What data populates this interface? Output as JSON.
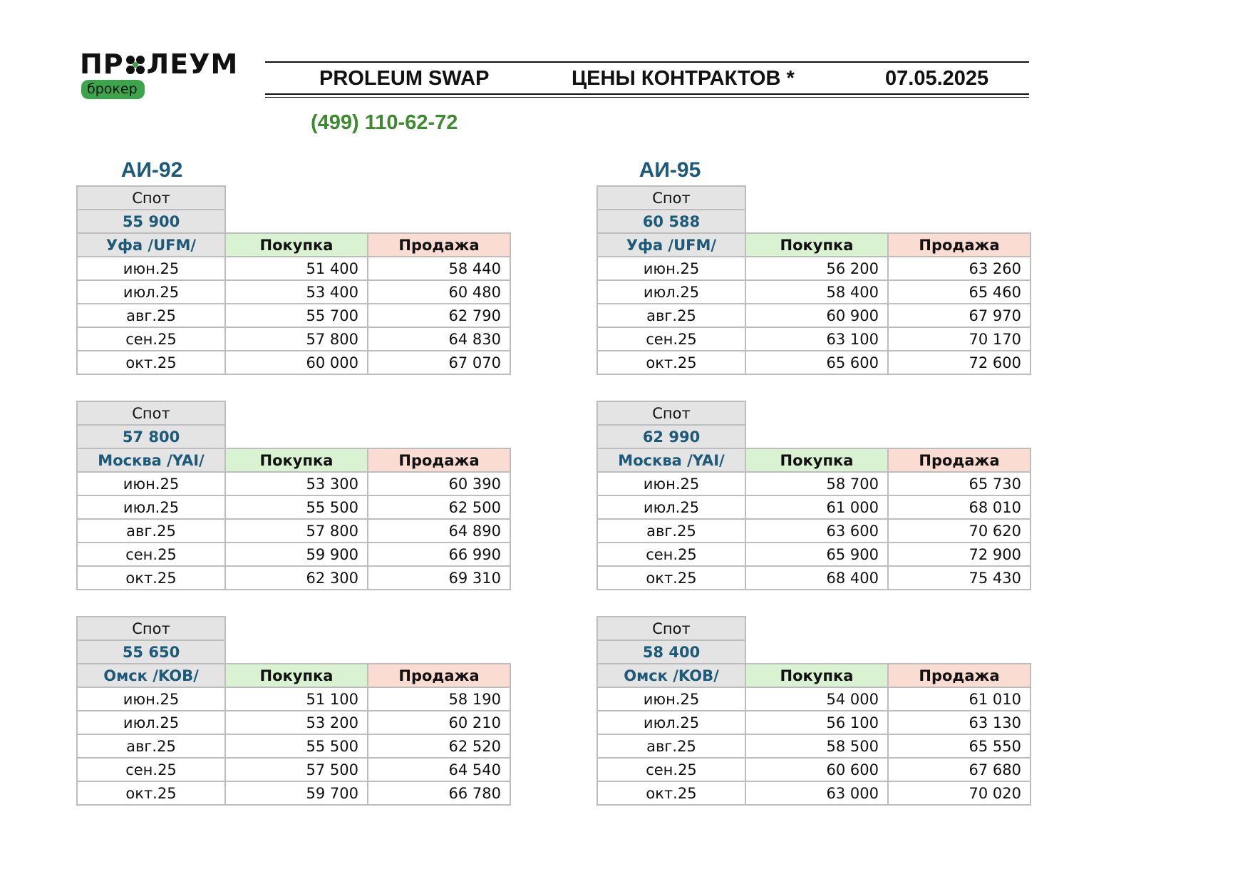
{
  "logo": {
    "wordmark_left": "ПР",
    "wordmark_right": "ЛЕУМ",
    "badge": "брокер",
    "mark_icon": "proleum-flower-icon"
  },
  "header": {
    "product": "PROLEUM SWAP",
    "subtitle": "ЦЕНЫ КОНТРАКТОВ *",
    "date": "07.05.2025",
    "phone": "(499) 110-62-72"
  },
  "labels": {
    "spot": "Спот",
    "buy": "Покупка",
    "sell": "Продажа"
  },
  "fuels": [
    {
      "title": "АИ-92",
      "tables": [
        {
          "spot": "55 900",
          "city": "Уфа /UFM/",
          "rows": [
            {
              "month": "июн.25",
              "buy": "51 400",
              "sell": "58 440"
            },
            {
              "month": "июл.25",
              "buy": "53 400",
              "sell": "60 480"
            },
            {
              "month": "авг.25",
              "buy": "55 700",
              "sell": "62 790"
            },
            {
              "month": "сен.25",
              "buy": "57 800",
              "sell": "64 830"
            },
            {
              "month": "окт.25",
              "buy": "60 000",
              "sell": "67 070"
            }
          ]
        },
        {
          "spot": "57 800",
          "city": "Москва /YAI/",
          "rows": [
            {
              "month": "июн.25",
              "buy": "53 300",
              "sell": "60 390"
            },
            {
              "month": "июл.25",
              "buy": "55 500",
              "sell": "62 500"
            },
            {
              "month": "авг.25",
              "buy": "57 800",
              "sell": "64 890"
            },
            {
              "month": "сен.25",
              "buy": "59 900",
              "sell": "66 990"
            },
            {
              "month": "окт.25",
              "buy": "62 300",
              "sell": "69 310"
            }
          ]
        },
        {
          "spot": "55 650",
          "city": "Омск /KOB/",
          "rows": [
            {
              "month": "июн.25",
              "buy": "51 100",
              "sell": "58 190"
            },
            {
              "month": "июл.25",
              "buy": "53 200",
              "sell": "60 210"
            },
            {
              "month": "авг.25",
              "buy": "55 500",
              "sell": "62 520"
            },
            {
              "month": "сен.25",
              "buy": "57 500",
              "sell": "64 540"
            },
            {
              "month": "окт.25",
              "buy": "59 700",
              "sell": "66 780"
            }
          ]
        }
      ]
    },
    {
      "title": "АИ-95",
      "tables": [
        {
          "spot": "60 588",
          "city": "Уфа /UFM/",
          "rows": [
            {
              "month": "июн.25",
              "buy": "56 200",
              "sell": "63 260"
            },
            {
              "month": "июл.25",
              "buy": "58 400",
              "sell": "65 460"
            },
            {
              "month": "авг.25",
              "buy": "60 900",
              "sell": "67 970"
            },
            {
              "month": "сен.25",
              "buy": "63 100",
              "sell": "70 170"
            },
            {
              "month": "окт.25",
              "buy": "65 600",
              "sell": "72 600"
            }
          ]
        },
        {
          "spot": "62 990",
          "city": "Москва /YAI/",
          "rows": [
            {
              "month": "июн.25",
              "buy": "58 700",
              "sell": "65 730"
            },
            {
              "month": "июл.25",
              "buy": "61 000",
              "sell": "68 010"
            },
            {
              "month": "авг.25",
              "buy": "63 600",
              "sell": "70 620"
            },
            {
              "month": "сен.25",
              "buy": "65 900",
              "sell": "72 900"
            },
            {
              "month": "окт.25",
              "buy": "68 400",
              "sell": "75 430"
            }
          ]
        },
        {
          "spot": "58 400",
          "city": "Омск /KOB/",
          "rows": [
            {
              "month": "июн.25",
              "buy": "54 000",
              "sell": "61 010"
            },
            {
              "month": "июл.25",
              "buy": "56 100",
              "sell": "63 130"
            },
            {
              "month": "авг.25",
              "buy": "58 500",
              "sell": "65 550"
            },
            {
              "month": "сен.25",
              "buy": "60 600",
              "sell": "67 680"
            },
            {
              "month": "окт.25",
              "buy": "63 000",
              "sell": "70 020"
            }
          ]
        }
      ]
    }
  ]
}
